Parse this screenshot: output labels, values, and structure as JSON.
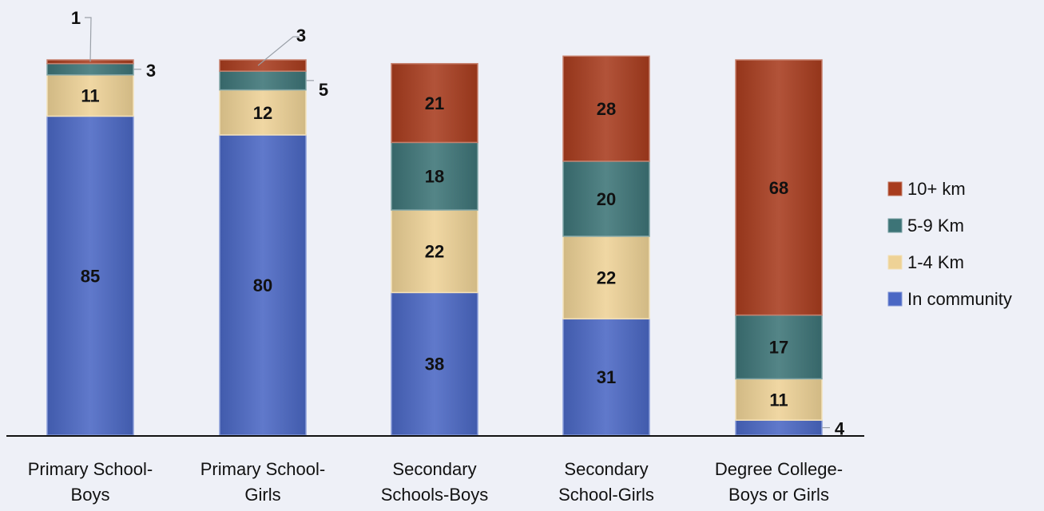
{
  "chart_data": {
    "type": "bar",
    "stacked": true,
    "categories": [
      [
        "Primary School-",
        "Boys"
      ],
      [
        "Primary School-",
        "Girls"
      ],
      [
        "Secondary",
        "Schools-Boys"
      ],
      [
        "Secondary",
        "School-Girls"
      ],
      [
        "Degree College-",
        "Boys or Girls"
      ]
    ],
    "series": [
      {
        "name": "In community",
        "color": "#4a67c4",
        "values": [
          85,
          80,
          38,
          31,
          4
        ]
      },
      {
        "name": "1-4 Km",
        "color": "#eed296",
        "values": [
          11,
          12,
          22,
          22,
          11
        ]
      },
      {
        "name": "5-9 Km",
        "color": "#3d7477",
        "values": [
          3,
          5,
          18,
          20,
          17
        ]
      },
      {
        "name": "10+ km",
        "color": "#a83c1e",
        "values": [
          1,
          3,
          21,
          28,
          68
        ]
      }
    ],
    "legend_order": [
      "10+ km",
      "5-9 Km",
      "1-4 Km",
      "In community"
    ],
    "legend_position": "right",
    "grid": false,
    "data_labels": true
  }
}
